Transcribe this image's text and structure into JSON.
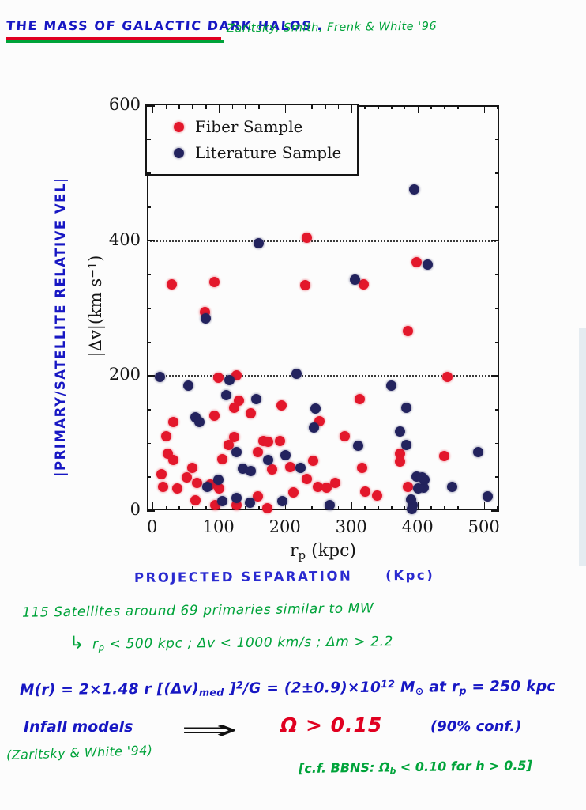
{
  "header": {
    "title": "THE MASS OF GALACTIC DARK HALOS",
    "title_period": ".",
    "attribution": "Zaritsky, Smith, Frenk & White '96"
  },
  "chart": {
    "hand_y_label": "|PRIMARY/SATELLITE RELATIVE VEL|",
    "hand_x_label": "PROJECTED SEPARATION",
    "hand_x_unit": "(Kpc)",
    "y_axis": {
      "ticks": [
        "600",
        "400",
        "200",
        "0"
      ],
      "label_parts": {
        "pre": "|Δv|(km s",
        "sup": "−1",
        "post": ")"
      }
    },
    "x_axis": {
      "ticks": [
        "0",
        "100",
        "200",
        "300",
        "400",
        "500"
      ],
      "label_parts": {
        "pre": "r",
        "sub": "p",
        "post": " (kpc)"
      }
    },
    "reference_lines": [
      200,
      400
    ]
  },
  "chart_data": {
    "type": "scatter",
    "title": "",
    "xlabel": "r_p (kpc)",
    "ylabel": "|Δv| (km s^-1)",
    "xlim": [
      0,
      525
    ],
    "ylim": [
      0,
      600
    ],
    "grid": "horizontal dotted reference lines at y=200 and y=400",
    "legend_position": "top-left",
    "series": [
      {
        "name": "Fiber Sample",
        "color": "#e3172b",
        "points": [
          [
            30,
            334
          ],
          [
            94,
            338
          ],
          [
            231,
            333
          ],
          [
            233,
            404
          ],
          [
            319,
            334
          ],
          [
            398,
            367
          ],
          [
            79,
            293
          ],
          [
            386,
            266
          ],
          [
            100,
            196
          ],
          [
            127,
            200
          ],
          [
            445,
            197
          ],
          [
            131,
            162
          ],
          [
            313,
            165
          ],
          [
            195,
            155
          ],
          [
            124,
            152
          ],
          [
            149,
            143
          ],
          [
            32,
            131
          ],
          [
            94,
            140
          ],
          [
            252,
            132
          ],
          [
            290,
            109
          ],
          [
            21,
            109
          ],
          [
            124,
            108
          ],
          [
            168,
            103
          ],
          [
            175,
            101
          ],
          [
            193,
            102
          ],
          [
            115,
            97
          ],
          [
            159,
            86
          ],
          [
            23,
            84
          ],
          [
            373,
            84
          ],
          [
            106,
            76
          ],
          [
            440,
            80
          ],
          [
            32,
            75
          ],
          [
            373,
            72
          ],
          [
            243,
            73
          ],
          [
            60,
            63
          ],
          [
            181,
            60
          ],
          [
            208,
            64
          ],
          [
            14,
            53
          ],
          [
            52,
            49
          ],
          [
            68,
            41
          ],
          [
            88,
            38
          ],
          [
            17,
            35
          ],
          [
            38,
            32
          ],
          [
            101,
            32
          ],
          [
            276,
            40
          ],
          [
            233,
            46
          ],
          [
            250,
            34
          ],
          [
            263,
            33
          ],
          [
            386,
            34
          ],
          [
            213,
            26
          ],
          [
            316,
            63
          ],
          [
            321,
            28
          ],
          [
            65,
            15
          ],
          [
            95,
            8
          ],
          [
            127,
            8
          ],
          [
            159,
            20
          ],
          [
            173,
            3
          ],
          [
            339,
            22
          ]
        ]
      },
      {
        "name": "Literature Sample",
        "color": "#23235e",
        "points": [
          [
            395,
            475
          ],
          [
            161,
            395
          ],
          [
            415,
            364
          ],
          [
            306,
            342
          ],
          [
            81,
            284
          ],
          [
            12,
            197
          ],
          [
            117,
            193
          ],
          [
            218,
            202
          ],
          [
            55,
            184
          ],
          [
            360,
            184
          ],
          [
            112,
            170
          ],
          [
            157,
            165
          ],
          [
            246,
            151
          ],
          [
            383,
            152
          ],
          [
            65,
            138
          ],
          [
            71,
            131
          ],
          [
            244,
            123
          ],
          [
            374,
            117
          ],
          [
            127,
            86
          ],
          [
            201,
            82
          ],
          [
            310,
            96
          ],
          [
            383,
            97
          ],
          [
            492,
            86
          ],
          [
            175,
            75
          ],
          [
            137,
            61
          ],
          [
            148,
            58
          ],
          [
            223,
            63
          ],
          [
            399,
            50
          ],
          [
            100,
            45
          ],
          [
            411,
            45
          ],
          [
            83,
            35
          ],
          [
            409,
            33
          ],
          [
            452,
            34
          ],
          [
            506,
            20
          ],
          [
            106,
            14
          ],
          [
            127,
            18
          ],
          [
            147,
            11
          ],
          [
            196,
            13
          ],
          [
            268,
            8
          ],
          [
            390,
            16
          ],
          [
            393,
            8
          ],
          [
            391,
            2
          ],
          [
            401,
            32
          ],
          [
            407,
            49
          ]
        ]
      }
    ]
  },
  "notes": {
    "line1": "115 Satellites around 69 primaries similar to MW",
    "line2": {
      "arrow": "↳",
      "pre": "r",
      "sub": "p",
      "post": " < 500 kpc ;  Δv < 1000 km/s ;  Δm > 2.2"
    },
    "equation": {
      "p1": "M(r) = 2×1.48 r [(Δv)",
      "sub1": "med",
      "p2": " ]",
      "sup1": "2",
      "p3": "/G = (2±0.9)×10",
      "sup2": "12",
      "p4": " M",
      "sub2": "⊙",
      "p5": "  at  r",
      "sub3": "p",
      "p6": " = 250 kpc"
    },
    "infall": "Infall models",
    "arrow": "⇒",
    "omega_result": "Ω > 0.15",
    "confidence": "(90% conf.)",
    "citation": "(Zaritsky & White '94)",
    "bbns": {
      "p1": "[c.f. BBNS:  Ω",
      "sub": "b",
      "p2": " < 0.10   for h > 0.5]"
    }
  },
  "colors": {
    "ink_blue": "#1717c3",
    "ink_green": "#00a33a",
    "ink_red": "#e00020",
    "fiber_red": "#e3172b",
    "literature_navy": "#23235e"
  }
}
